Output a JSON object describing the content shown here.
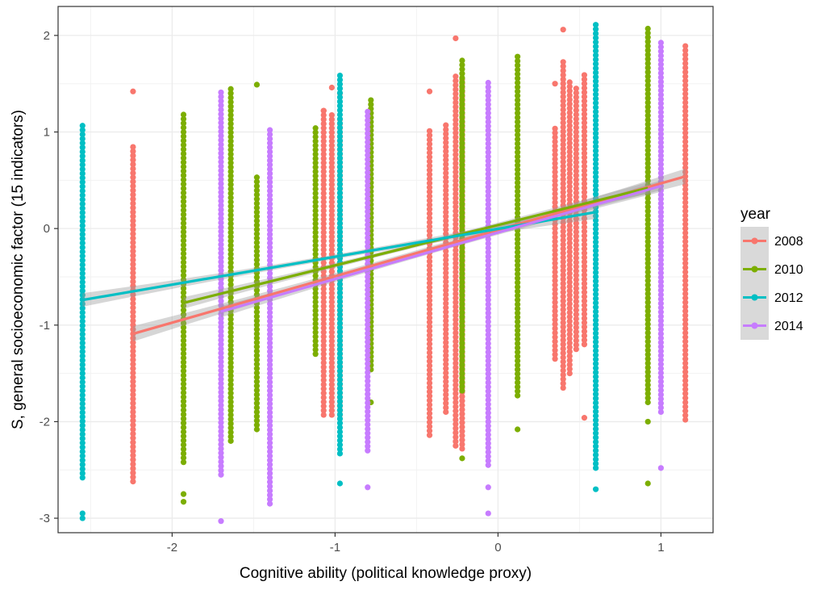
{
  "chart_data": {
    "type": "scatter",
    "xlabel": "Cognitive ability (political knowledge proxy)",
    "ylabel": "S, general socioeconomic factor (15 indicators)",
    "xlim": [
      -2.7,
      1.32
    ],
    "ylim": [
      -3.15,
      2.3
    ],
    "x_ticks": [
      -2,
      -1,
      0,
      1
    ],
    "x_tick_labels": [
      "-2",
      "-1",
      "0",
      "1"
    ],
    "y_ticks": [
      -3,
      -2,
      -1,
      0,
      1,
      2
    ],
    "y_tick_labels": [
      "-3",
      "-2",
      "-1",
      "0",
      "1",
      "2"
    ],
    "grid": true,
    "legend": {
      "title": "year",
      "position": "right"
    },
    "series": [
      {
        "name": "2008",
        "color": "#F8766D",
        "points": [
          {
            "x": -2.24,
            "ymin": -2.62,
            "ymax": 0.87,
            "extra": [
              1.42
            ]
          },
          {
            "x": -1.07,
            "ymin": -1.93,
            "ymax": 1.25,
            "extra": [
              1.22
            ]
          },
          {
            "x": -1.02,
            "ymin": -1.93,
            "ymax": 1.2,
            "extra": [
              1.46
            ]
          },
          {
            "x": -0.97,
            "ymin": -1.93,
            "ymax": 1.15,
            "extra": [
              1.4
            ]
          },
          {
            "x": -0.42,
            "ymin": -2.14,
            "ymax": 1.05,
            "extra": [
              1.42
            ]
          },
          {
            "x": -0.32,
            "ymin": -1.9,
            "ymax": 1.1,
            "extra": []
          },
          {
            "x": -0.26,
            "ymin": -2.25,
            "ymax": 1.6,
            "extra": [
              1.97
            ]
          },
          {
            "x": -0.22,
            "ymin": -2.28,
            "ymax": 1.55,
            "extra": []
          },
          {
            "x": 0.35,
            "ymin": -1.35,
            "ymax": 1.05,
            "extra": [
              1.5
            ]
          },
          {
            "x": 0.4,
            "ymin": -1.65,
            "ymax": 1.75,
            "extra": [
              2.06
            ]
          },
          {
            "x": 0.44,
            "ymin": -1.5,
            "ymax": 1.55,
            "extra": []
          },
          {
            "x": 0.48,
            "ymin": -1.25,
            "ymax": 1.45,
            "extra": []
          },
          {
            "x": 0.53,
            "ymin": -1.2,
            "ymax": 1.6,
            "extra": [
              -1.96
            ]
          },
          {
            "x": 1.15,
            "ymin": -1.98,
            "ymax": 1.9,
            "extra": []
          }
        ],
        "fit": {
          "x": [
            -2.24,
            1.15
          ],
          "y": [
            -1.09,
            0.54
          ],
          "band": 0.08
        }
      },
      {
        "name": "2010",
        "color": "#7CAE00",
        "points": [
          {
            "x": -1.93,
            "ymin": -2.42,
            "ymax": 1.21,
            "extra": [
              -2.75,
              -2.83
            ]
          },
          {
            "x": -1.64,
            "ymin": -2.2,
            "ymax": 1.46,
            "extra": []
          },
          {
            "x": -1.48,
            "ymin": -2.08,
            "ymax": 0.57,
            "extra": [
              1.49
            ]
          },
          {
            "x": -1.12,
            "ymin": -1.3,
            "ymax": 1.07,
            "extra": []
          },
          {
            "x": -0.78,
            "ymin": -1.46,
            "ymax": 1.34,
            "extra": [
              -1.8
            ]
          },
          {
            "x": -0.22,
            "ymin": -1.68,
            "ymax": 1.75,
            "extra": [
              -2.38
            ]
          },
          {
            "x": 0.12,
            "ymin": -1.73,
            "ymax": 1.82,
            "extra": [
              -2.08
            ]
          },
          {
            "x": 0.92,
            "ymin": -1.8,
            "ymax": 2.08,
            "extra": [
              -2.0,
              -2.64
            ]
          }
        ],
        "fit": {
          "x": [
            -1.93,
            0.92
          ],
          "y": [
            -0.77,
            0.42
          ],
          "band": 0.06
        }
      },
      {
        "name": "2012",
        "color": "#00BFC4",
        "points": [
          {
            "x": -2.55,
            "ymin": -2.58,
            "ymax": 1.1,
            "extra": [
              -2.95,
              -3.0
            ]
          },
          {
            "x": -0.97,
            "ymin": -2.33,
            "ymax": 1.6,
            "extra": [
              -2.64
            ]
          },
          {
            "x": 0.6,
            "ymin": -2.48,
            "ymax": 2.15,
            "extra": [
              -2.7
            ]
          }
        ],
        "fit": {
          "x": [
            -2.55,
            0.6
          ],
          "y": [
            -0.74,
            0.17
          ],
          "band": 0.07
        }
      },
      {
        "name": "2014",
        "color": "#C77CFF",
        "points": [
          {
            "x": -1.7,
            "ymin": -2.55,
            "ymax": 1.44,
            "extra": [
              -3.03
            ]
          },
          {
            "x": -1.4,
            "ymin": -2.85,
            "ymax": 1.03,
            "extra": []
          },
          {
            "x": -0.8,
            "ymin": -2.3,
            "ymax": 1.22,
            "extra": [
              -2.68
            ]
          },
          {
            "x": -0.06,
            "ymin": -2.45,
            "ymax": 1.53,
            "extra": [
              -2.68,
              -2.95
            ]
          },
          {
            "x": 1.0,
            "ymin": -1.9,
            "ymax": 1.93,
            "extra": [
              -2.48
            ]
          }
        ],
        "fit": {
          "x": [
            -1.7,
            1.0
          ],
          "y": [
            -0.86,
            0.44
          ],
          "band": 0.06
        }
      }
    ]
  }
}
